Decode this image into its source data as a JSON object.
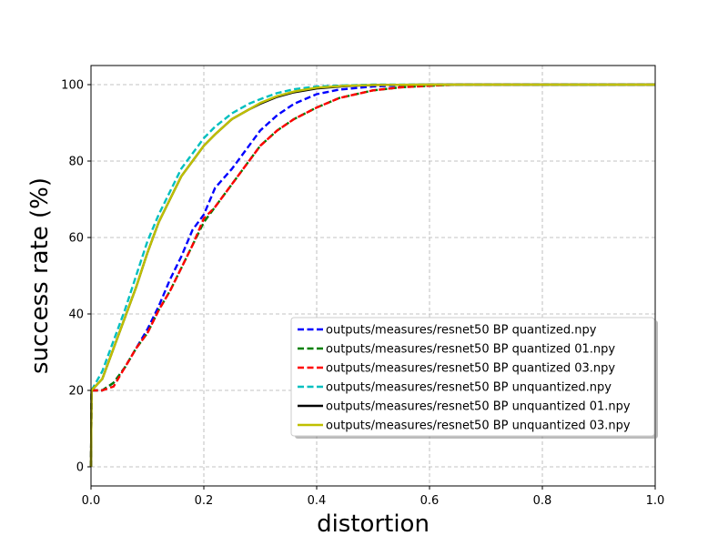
{
  "chart_data": {
    "type": "line",
    "title": "",
    "xlabel": "distortion",
    "ylabel": "success rate (%)",
    "xlim": [
      0.0,
      1.0
    ],
    "ylim": [
      -5,
      105
    ],
    "xticks": [
      "0.0",
      "0.2",
      "0.4",
      "0.6",
      "0.8",
      "1.0"
    ],
    "yticks": [
      "0",
      "20",
      "40",
      "60",
      "80",
      "100"
    ],
    "grid": true,
    "legend_position": "lower-right",
    "series": [
      {
        "name": "outputs/measures/resnet50 BP quantized.npy",
        "color": "#0000ff",
        "dash": "dashed",
        "x": [
          0,
          0.001,
          0.02,
          0.04,
          0.06,
          0.08,
          0.1,
          0.12,
          0.14,
          0.16,
          0.18,
          0.2,
          0.22,
          0.25,
          0.28,
          0.3,
          0.33,
          0.36,
          0.4,
          0.44,
          0.5,
          0.55,
          0.6,
          0.65,
          1.0
        ],
        "y": [
          0,
          20,
          20,
          22,
          26,
          31,
          36,
          42,
          49,
          55,
          62,
          66,
          73,
          78,
          84,
          88,
          92,
          95,
          97.5,
          98.7,
          99.5,
          99.8,
          100,
          100,
          100
        ]
      },
      {
        "name": "outputs/measures/resnet50 BP quantized 01.npy",
        "color": "#008000",
        "dash": "dashed",
        "x": [
          0,
          0.001,
          0.02,
          0.04,
          0.06,
          0.08,
          0.1,
          0.12,
          0.14,
          0.16,
          0.18,
          0.2,
          0.22,
          0.25,
          0.28,
          0.3,
          0.33,
          0.36,
          0.4,
          0.44,
          0.5,
          0.55,
          0.6,
          0.65,
          1.0
        ],
        "y": [
          0,
          20,
          20,
          22,
          26,
          31,
          35,
          41,
          46,
          52,
          58,
          64,
          68,
          74,
          80,
          84,
          88,
          91,
          94,
          96.5,
          98.5,
          99.3,
          99.7,
          100,
          100
        ]
      },
      {
        "name": "outputs/measures/resnet50 BP quantized 03.npy",
        "color": "#ff0000",
        "dash": "dashed",
        "x": [
          0,
          0.001,
          0.02,
          0.04,
          0.06,
          0.08,
          0.1,
          0.12,
          0.14,
          0.16,
          0.18,
          0.2,
          0.22,
          0.25,
          0.28,
          0.3,
          0.33,
          0.36,
          0.4,
          0.44,
          0.5,
          0.55,
          0.6,
          0.65,
          1.0
        ],
        "y": [
          0,
          20,
          20,
          21,
          26,
          31,
          35,
          41,
          46,
          52,
          58,
          65,
          68,
          74,
          80,
          84,
          88,
          91,
          94,
          96.5,
          98.5,
          99.3,
          99.7,
          100,
          100
        ]
      },
      {
        "name": "outputs/measures/resnet50 BP unquantized.npy",
        "color": "#00bfbf",
        "dash": "dashed",
        "x": [
          0,
          0.001,
          0.02,
          0.04,
          0.06,
          0.08,
          0.1,
          0.12,
          0.14,
          0.16,
          0.18,
          0.2,
          0.22,
          0.25,
          0.28,
          0.3,
          0.33,
          0.36,
          0.4,
          0.45,
          0.5,
          0.6,
          1.0
        ],
        "y": [
          0,
          20,
          25,
          33,
          41,
          50,
          59,
          66,
          72,
          78,
          82,
          86,
          89,
          92.5,
          95,
          96.2,
          97.8,
          98.8,
          99.5,
          99.8,
          100,
          100,
          100
        ]
      },
      {
        "name": "outputs/measures/resnet50 BP unquantized 01.npy",
        "color": "#000000",
        "dash": "solid",
        "x": [
          0,
          0.001,
          0.02,
          0.04,
          0.06,
          0.08,
          0.1,
          0.12,
          0.14,
          0.16,
          0.18,
          0.2,
          0.22,
          0.25,
          0.28,
          0.3,
          0.33,
          0.36,
          0.4,
          0.45,
          0.5,
          0.6,
          1.0
        ],
        "y": [
          0,
          20,
          23,
          31,
          39,
          47,
          56,
          64,
          70,
          76,
          80,
          84,
          87,
          91,
          93.5,
          95,
          96.8,
          98,
          99,
          99.6,
          99.9,
          100,
          100
        ]
      },
      {
        "name": "outputs/measures/resnet50 BP unquantized 03.npy",
        "color": "#bfbf00",
        "dash": "solid",
        "x": [
          0,
          0.001,
          0.02,
          0.04,
          0.06,
          0.08,
          0.1,
          0.12,
          0.14,
          0.16,
          0.18,
          0.2,
          0.22,
          0.25,
          0.28,
          0.3,
          0.33,
          0.36,
          0.4,
          0.45,
          0.5,
          0.6,
          1.0
        ],
        "y": [
          0,
          20,
          23,
          31,
          39,
          47,
          56,
          64,
          70,
          76,
          80,
          84,
          87,
          91,
          93.5,
          95.2,
          97,
          98.2,
          99.2,
          99.7,
          99.9,
          100,
          100
        ]
      }
    ]
  }
}
